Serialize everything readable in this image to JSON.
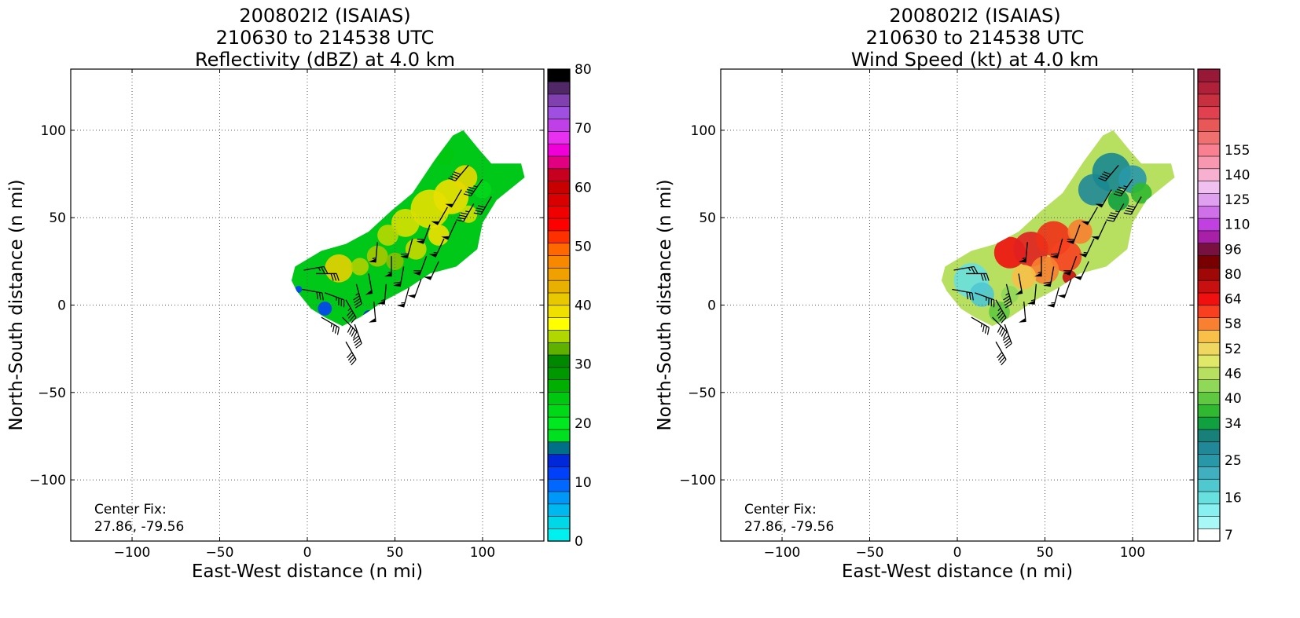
{
  "chart_data": [
    {
      "type": "map",
      "title_lines": [
        "200802I2 (ISAIAS)",
        "210630 to 214538 UTC",
        "Reflectivity (dBZ) at 4.0 km"
      ],
      "xlabel": "East-West distance (n mi)",
      "ylabel": "North-South distance (n mi)",
      "xlim": [
        -135,
        135
      ],
      "ylim": [
        -135,
        135
      ],
      "xticks": [
        -100,
        -50,
        0,
        50,
        100
      ],
      "yticks": [
        -100,
        -50,
        0,
        50,
        100
      ],
      "xtick_labels": [
        "−100",
        "−50",
        "0",
        "50",
        "100"
      ],
      "ytick_labels": [
        "−100",
        "−50",
        "0",
        "50",
        "100"
      ],
      "grid": true,
      "annotation": {
        "line1": "Center Fix:",
        "line2": "27.86, -79.56"
      },
      "colorbar": {
        "label_values": [
          0,
          10,
          20,
          30,
          40,
          50,
          60,
          70,
          80
        ],
        "labels": [
          "0",
          "10",
          "20",
          "30",
          "40",
          "50",
          "60",
          "70",
          "80"
        ],
        "colors": [
          "#00f0f0",
          "#00d8e8",
          "#00b8f0",
          "#0098f8",
          "#0068ff",
          "#0040f8",
          "#0028d8",
          "#007088",
          "#00e020",
          "#00e820",
          "#00d818",
          "#00c810",
          "#00b000",
          "#009800",
          "#008800",
          "#60b000",
          "#b0d800",
          "#ffff00",
          "#f0e000",
          "#e8c800",
          "#e8b000",
          "#f0a000",
          "#f88800",
          "#ff6800",
          "#ff3000",
          "#ff0000",
          "#f00000",
          "#d80000",
          "#c80000",
          "#c80020",
          "#e00080",
          "#f000d8",
          "#e830f0",
          "#c040e8",
          "#a050e0",
          "#8040b0",
          "#502868",
          "#000000"
        ]
      },
      "field": {
        "swath": [
          [
            -7,
            22
          ],
          [
            8,
            31
          ],
          [
            22,
            35
          ],
          [
            35,
            42
          ],
          [
            48,
            54
          ],
          [
            60,
            64
          ],
          [
            72,
            82
          ],
          [
            83,
            97
          ],
          [
            89,
            100
          ],
          [
            98,
            89
          ],
          [
            105,
            81
          ],
          [
            122,
            81
          ],
          [
            124,
            73
          ],
          [
            108,
            60
          ],
          [
            100,
            47
          ],
          [
            97,
            32
          ],
          [
            85,
            22
          ],
          [
            70,
            18
          ],
          [
            58,
            10
          ],
          [
            45,
            3
          ],
          [
            30,
            -7
          ],
          [
            20,
            -12
          ],
          [
            10,
            -7
          ],
          [
            2,
            -2
          ],
          [
            -6,
            8
          ],
          [
            -9,
            14
          ]
        ],
        "blobs": [
          {
            "x": 82,
            "y": 62,
            "r": 10,
            "color": "#f0e000"
          },
          {
            "x": 70,
            "y": 55,
            "r": 11,
            "color": "#e8e000"
          },
          {
            "x": 90,
            "y": 73,
            "r": 7,
            "color": "#e8d800"
          },
          {
            "x": 56,
            "y": 47,
            "r": 8,
            "color": "#d8e000"
          },
          {
            "x": 46,
            "y": 40,
            "r": 6,
            "color": "#b8d800"
          },
          {
            "x": 18,
            "y": 21,
            "r": 8,
            "color": "#e8d000"
          },
          {
            "x": 30,
            "y": 22,
            "r": 5,
            "color": "#b0d000"
          },
          {
            "x": 40,
            "y": 28,
            "r": 6,
            "color": "#a8c800"
          },
          {
            "x": 62,
            "y": 32,
            "r": 6,
            "color": "#c8d800"
          },
          {
            "x": 75,
            "y": 40,
            "r": 6,
            "color": "#f0e000"
          },
          {
            "x": 92,
            "y": 52,
            "r": 5,
            "color": "#d0e000"
          },
          {
            "x": 100,
            "y": 66,
            "r": 5,
            "color": "#00d818"
          },
          {
            "x": 78,
            "y": 86,
            "r": 6,
            "color": "#00c810"
          },
          {
            "x": 50,
            "y": 25,
            "r": 5,
            "color": "#88c000"
          },
          {
            "x": 10,
            "y": -2,
            "r": 4,
            "color": "#0040f8"
          },
          {
            "x": 35,
            "y": -6,
            "r": 3,
            "color": "#0028d8"
          },
          {
            "x": -5,
            "y": 9,
            "r": 2,
            "color": "#0040f8"
          }
        ]
      },
      "wind_barbs": [
        {
          "x": -2,
          "y": 20,
          "dir": 80,
          "kt": 25
        },
        {
          "x": 5,
          "y": 18,
          "dir": 90,
          "kt": 30
        },
        {
          "x": -3,
          "y": 9,
          "dir": 100,
          "kt": 30
        },
        {
          "x": 10,
          "y": 7,
          "dir": 110,
          "kt": 35
        },
        {
          "x": 8,
          "y": -7,
          "dir": 120,
          "kt": 35
        },
        {
          "x": 20,
          "y": -7,
          "dir": 135,
          "kt": 40
        },
        {
          "x": 22,
          "y": 3,
          "dir": 150,
          "kt": 45
        },
        {
          "x": 28,
          "y": 12,
          "dir": 165,
          "kt": 45
        },
        {
          "x": 27,
          "y": -11,
          "dir": 160,
          "kt": 40
        },
        {
          "x": 22,
          "y": -21,
          "dir": 150,
          "kt": 40
        },
        {
          "x": 35,
          "y": 18,
          "dir": 170,
          "kt": 50
        },
        {
          "x": 38,
          "y": 2,
          "dir": 175,
          "kt": 50
        },
        {
          "x": 45,
          "y": 12,
          "dir": 185,
          "kt": 55
        },
        {
          "x": 48,
          "y": 28,
          "dir": 180,
          "kt": 55
        },
        {
          "x": 55,
          "y": 22,
          "dir": 190,
          "kt": 60
        },
        {
          "x": 58,
          "y": 10,
          "dir": 195,
          "kt": 55
        },
        {
          "x": 60,
          "y": 38,
          "dir": 195,
          "kt": 60
        },
        {
          "x": 68,
          "y": 28,
          "dir": 200,
          "kt": 60
        },
        {
          "x": 70,
          "y": 46,
          "dir": 200,
          "kt": 60
        },
        {
          "x": 78,
          "y": 38,
          "dir": 205,
          "kt": 55
        },
        {
          "x": 80,
          "y": 56,
          "dir": 210,
          "kt": 50
        },
        {
          "x": 85,
          "y": 48,
          "dir": 205,
          "kt": 50
        },
        {
          "x": 88,
          "y": 66,
          "dir": 210,
          "kt": 50
        },
        {
          "x": 95,
          "y": 58,
          "dir": 210,
          "kt": 45
        },
        {
          "x": 100,
          "y": 72,
          "dir": 215,
          "kt": 45
        },
        {
          "x": 105,
          "y": 62,
          "dir": 210,
          "kt": 40
        },
        {
          "x": 92,
          "y": 80,
          "dir": 220,
          "kt": 40
        },
        {
          "x": 65,
          "y": 15,
          "dir": 200,
          "kt": 50
        },
        {
          "x": 75,
          "y": 25,
          "dir": 205,
          "kt": 50
        },
        {
          "x": 40,
          "y": 36,
          "dir": 185,
          "kt": 55
        }
      ]
    },
    {
      "type": "map",
      "title_lines": [
        "200802I2 (ISAIAS)",
        "210630 to 214538 UTC",
        "Wind Speed (kt) at 4.0 km"
      ],
      "xlabel": "East-West distance (n mi)",
      "ylabel": "North-South distance (n mi)",
      "xlim": [
        -135,
        135
      ],
      "ylim": [
        -135,
        135
      ],
      "xticks": [
        -100,
        -50,
        0,
        50,
        100
      ],
      "yticks": [
        -100,
        -50,
        0,
        50,
        100
      ],
      "xtick_labels": [
        "−100",
        "−50",
        "0",
        "50",
        "100"
      ],
      "ytick_labels": [
        "−100",
        "−50",
        "0",
        "50",
        "100"
      ],
      "grid": true,
      "annotation": {
        "line1": "Center Fix:",
        "line2": "27.86, -79.56"
      },
      "colorbar": {
        "labels": [
          "7",
          "16",
          "25",
          "34",
          "40",
          "46",
          "52",
          "58",
          "64",
          "80",
          "96",
          "110",
          "125",
          "140",
          "155"
        ],
        "label_bins": [
          0,
          3,
          6,
          9,
          11,
          13,
          15,
          17,
          19,
          21,
          23,
          25,
          27,
          29,
          31
        ],
        "colors": [
          "#ffffff",
          "#a8f8f8",
          "#88f0f0",
          "#68e0e0",
          "#50c8d0",
          "#40b0c0",
          "#2898a8",
          "#208898",
          "#188078",
          "#10a040",
          "#30b830",
          "#60c840",
          "#90d858",
          "#b8e060",
          "#e0e868",
          "#f0d860",
          "#f8c048",
          "#f88030",
          "#f84020",
          "#f01010",
          "#c81010",
          "#a00808",
          "#780000",
          "#781040",
          "#a820a8",
          "#c040e0",
          "#d070e8",
          "#e0a0f0",
          "#f0c0f0",
          "#f8b0d0",
          "#f898b0",
          "#f88090",
          "#f07070",
          "#e85858",
          "#e04050",
          "#c83040",
          "#b02038",
          "#981838"
        ]
      },
      "field": {
        "swath": [
          [
            -7,
            22
          ],
          [
            8,
            31
          ],
          [
            22,
            35
          ],
          [
            35,
            42
          ],
          [
            48,
            54
          ],
          [
            60,
            64
          ],
          [
            72,
            82
          ],
          [
            83,
            97
          ],
          [
            89,
            100
          ],
          [
            98,
            89
          ],
          [
            105,
            81
          ],
          [
            122,
            81
          ],
          [
            124,
            73
          ],
          [
            108,
            60
          ],
          [
            100,
            47
          ],
          [
            97,
            32
          ],
          [
            85,
            22
          ],
          [
            70,
            18
          ],
          [
            58,
            10
          ],
          [
            45,
            3
          ],
          [
            30,
            -7
          ],
          [
            20,
            -12
          ],
          [
            10,
            -7
          ],
          [
            2,
            -2
          ],
          [
            -6,
            8
          ],
          [
            -9,
            14
          ]
        ],
        "blobs": [
          {
            "x": 8,
            "y": 14,
            "r": 10,
            "color": "#68e0e0"
          },
          {
            "x": 14,
            "y": 6,
            "r": 7,
            "color": "#50c8d0"
          },
          {
            "x": 30,
            "y": 30,
            "r": 9,
            "color": "#f01010"
          },
          {
            "x": 42,
            "y": 32,
            "r": 10,
            "color": "#e02020"
          },
          {
            "x": 55,
            "y": 38,
            "r": 10,
            "color": "#f03018"
          },
          {
            "x": 62,
            "y": 28,
            "r": 9,
            "color": "#f84020"
          },
          {
            "x": 50,
            "y": 20,
            "r": 8,
            "color": "#f88030"
          },
          {
            "x": 38,
            "y": 16,
            "r": 7,
            "color": "#f8c048"
          },
          {
            "x": 70,
            "y": 42,
            "r": 7,
            "color": "#f88030"
          },
          {
            "x": 82,
            "y": 50,
            "r": 7,
            "color": "#b8e060"
          },
          {
            "x": 78,
            "y": 66,
            "r": 9,
            "color": "#208898"
          },
          {
            "x": 88,
            "y": 76,
            "r": 11,
            "color": "#188890"
          },
          {
            "x": 100,
            "y": 72,
            "r": 8,
            "color": "#2898a8"
          },
          {
            "x": 105,
            "y": 64,
            "r": 6,
            "color": "#30b830"
          },
          {
            "x": 92,
            "y": 60,
            "r": 6,
            "color": "#10a040"
          },
          {
            "x": 24,
            "y": -4,
            "r": 6,
            "color": "#60c840"
          },
          {
            "x": 30,
            "y": 6,
            "r": 5,
            "color": "#90d858"
          },
          {
            "x": 64,
            "y": 16,
            "r": 4,
            "color": "#c81010"
          }
        ]
      },
      "wind_barbs": [
        {
          "x": -2,
          "y": 20,
          "dir": 80,
          "kt": 25
        },
        {
          "x": 5,
          "y": 18,
          "dir": 90,
          "kt": 30
        },
        {
          "x": -3,
          "y": 9,
          "dir": 100,
          "kt": 30
        },
        {
          "x": 10,
          "y": 7,
          "dir": 110,
          "kt": 35
        },
        {
          "x": 8,
          "y": -7,
          "dir": 120,
          "kt": 35
        },
        {
          "x": 20,
          "y": -7,
          "dir": 135,
          "kt": 40
        },
        {
          "x": 22,
          "y": 3,
          "dir": 150,
          "kt": 45
        },
        {
          "x": 28,
          "y": 12,
          "dir": 165,
          "kt": 45
        },
        {
          "x": 27,
          "y": -11,
          "dir": 160,
          "kt": 40
        },
        {
          "x": 22,
          "y": -21,
          "dir": 150,
          "kt": 40
        },
        {
          "x": 35,
          "y": 18,
          "dir": 170,
          "kt": 50
        },
        {
          "x": 38,
          "y": 2,
          "dir": 175,
          "kt": 50
        },
        {
          "x": 45,
          "y": 12,
          "dir": 185,
          "kt": 55
        },
        {
          "x": 48,
          "y": 28,
          "dir": 180,
          "kt": 55
        },
        {
          "x": 55,
          "y": 22,
          "dir": 190,
          "kt": 60
        },
        {
          "x": 58,
          "y": 10,
          "dir": 195,
          "kt": 55
        },
        {
          "x": 60,
          "y": 38,
          "dir": 195,
          "kt": 60
        },
        {
          "x": 68,
          "y": 28,
          "dir": 200,
          "kt": 60
        },
        {
          "x": 70,
          "y": 46,
          "dir": 200,
          "kt": 60
        },
        {
          "x": 78,
          "y": 38,
          "dir": 205,
          "kt": 55
        },
        {
          "x": 80,
          "y": 56,
          "dir": 210,
          "kt": 50
        },
        {
          "x": 85,
          "y": 48,
          "dir": 205,
          "kt": 50
        },
        {
          "x": 88,
          "y": 66,
          "dir": 210,
          "kt": 50
        },
        {
          "x": 95,
          "y": 58,
          "dir": 210,
          "kt": 45
        },
        {
          "x": 100,
          "y": 72,
          "dir": 215,
          "kt": 45
        },
        {
          "x": 105,
          "y": 62,
          "dir": 210,
          "kt": 40
        },
        {
          "x": 92,
          "y": 80,
          "dir": 220,
          "kt": 40
        },
        {
          "x": 65,
          "y": 15,
          "dir": 200,
          "kt": 50
        },
        {
          "x": 75,
          "y": 25,
          "dir": 205,
          "kt": 50
        },
        {
          "x": 40,
          "y": 36,
          "dir": 185,
          "kt": 55
        }
      ]
    }
  ]
}
